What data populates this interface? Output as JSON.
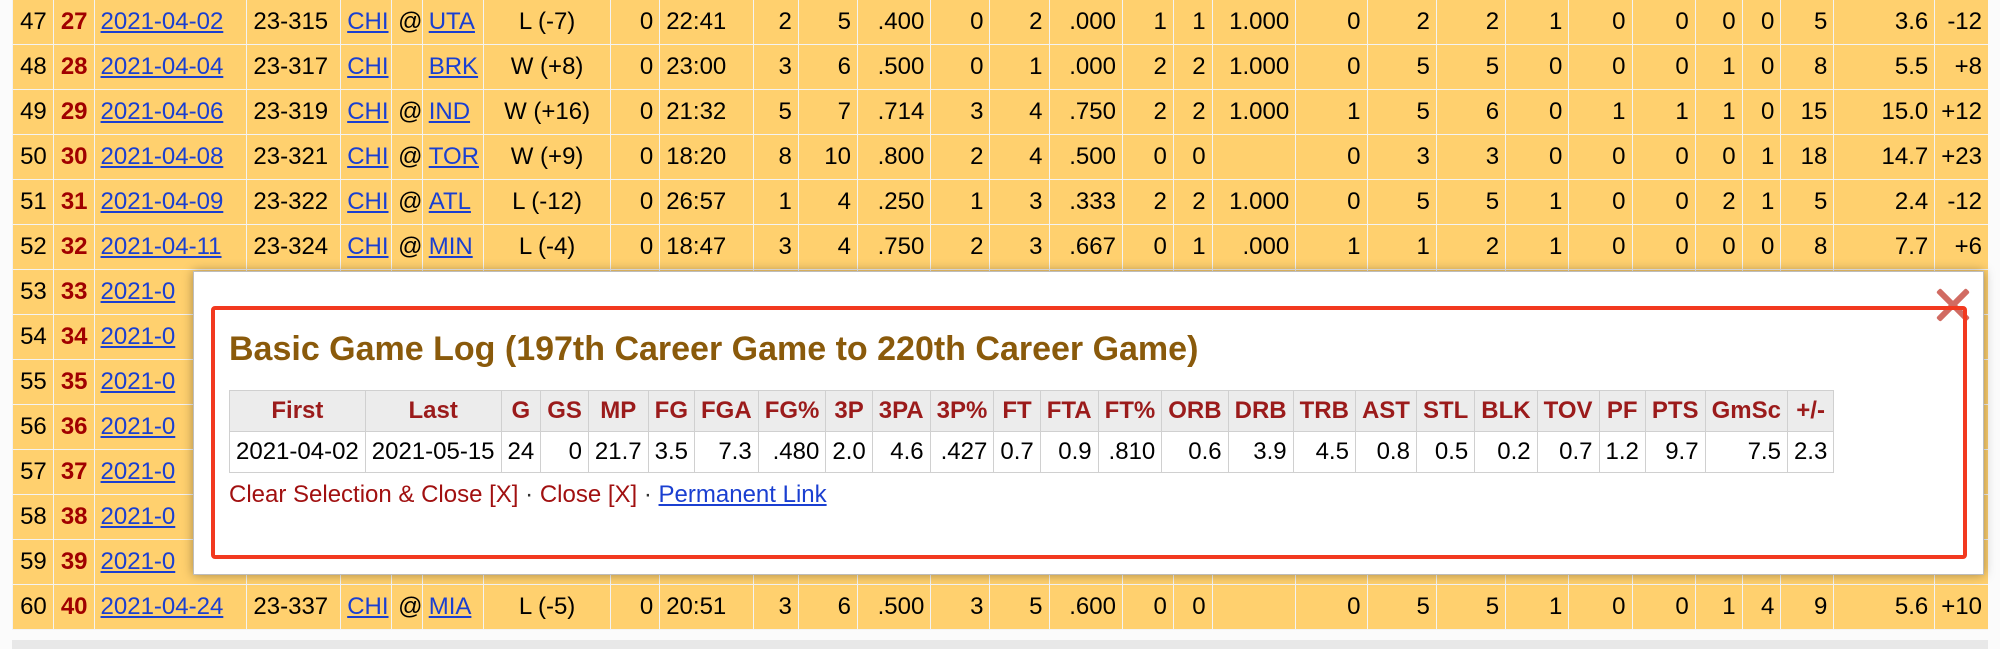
{
  "game_rows": [
    {
      "rk": "47",
      "g": "27",
      "date": "2021-04-02",
      "age": "23-315",
      "tm": "CHI",
      "loc": "@",
      "opp": "UTA",
      "result": "L (-7)",
      "gs": "0",
      "mp": "22:41",
      "fg": "2",
      "fga": "5",
      "fg_pct": ".400",
      "tp": "0",
      "tpa": "2",
      "tp_pct": ".000",
      "ft": "1",
      "fta": "1",
      "ft_pct": "1.000",
      "orb": "0",
      "drb": "2",
      "trb": "2",
      "ast": "1",
      "stl": "0",
      "blk": "0",
      "tov": "0",
      "pf": "0",
      "pts": "5",
      "gmsc": "3.6",
      "pm": "-12"
    },
    {
      "rk": "48",
      "g": "28",
      "date": "2021-04-04",
      "age": "23-317",
      "tm": "CHI",
      "loc": "",
      "opp": "BRK",
      "result": "W (+8)",
      "gs": "0",
      "mp": "23:00",
      "fg": "3",
      "fga": "6",
      "fg_pct": ".500",
      "tp": "0",
      "tpa": "1",
      "tp_pct": ".000",
      "ft": "2",
      "fta": "2",
      "ft_pct": "1.000",
      "orb": "0",
      "drb": "5",
      "trb": "5",
      "ast": "0",
      "stl": "0",
      "blk": "0",
      "tov": "1",
      "pf": "0",
      "pts": "8",
      "gmsc": "5.5",
      "pm": "+8"
    },
    {
      "rk": "49",
      "g": "29",
      "date": "2021-04-06",
      "age": "23-319",
      "tm": "CHI",
      "loc": "@",
      "opp": "IND",
      "result": "W (+16)",
      "gs": "0",
      "mp": "21:32",
      "fg": "5",
      "fga": "7",
      "fg_pct": ".714",
      "tp": "3",
      "tpa": "4",
      "tp_pct": ".750",
      "ft": "2",
      "fta": "2",
      "ft_pct": "1.000",
      "orb": "1",
      "drb": "5",
      "trb": "6",
      "ast": "0",
      "stl": "1",
      "blk": "1",
      "tov": "1",
      "pf": "0",
      "pts": "15",
      "gmsc": "15.0",
      "pm": "+12"
    },
    {
      "rk": "50",
      "g": "30",
      "date": "2021-04-08",
      "age": "23-321",
      "tm": "CHI",
      "loc": "@",
      "opp": "TOR",
      "result": "W (+9)",
      "gs": "0",
      "mp": "18:20",
      "fg": "8",
      "fga": "10",
      "fg_pct": ".800",
      "tp": "2",
      "tpa": "4",
      "tp_pct": ".500",
      "ft": "0",
      "fta": "0",
      "ft_pct": "",
      "orb": "0",
      "drb": "3",
      "trb": "3",
      "ast": "0",
      "stl": "0",
      "blk": "0",
      "tov": "0",
      "pf": "1",
      "pts": "18",
      "gmsc": "14.7",
      "pm": "+23"
    },
    {
      "rk": "51",
      "g": "31",
      "date": "2021-04-09",
      "age": "23-322",
      "tm": "CHI",
      "loc": "@",
      "opp": "ATL",
      "result": "L (-12)",
      "gs": "0",
      "mp": "26:57",
      "fg": "1",
      "fga": "4",
      "fg_pct": ".250",
      "tp": "1",
      "tpa": "3",
      "tp_pct": ".333",
      "ft": "2",
      "fta": "2",
      "ft_pct": "1.000",
      "orb": "0",
      "drb": "5",
      "trb": "5",
      "ast": "1",
      "stl": "0",
      "blk": "0",
      "tov": "2",
      "pf": "1",
      "pts": "5",
      "gmsc": "2.4",
      "pm": "-12"
    },
    {
      "rk": "52",
      "g": "32",
      "date": "2021-04-11",
      "age": "23-324",
      "tm": "CHI",
      "loc": "@",
      "opp": "MIN",
      "result": "L (-4)",
      "gs": "0",
      "mp": "18:47",
      "fg": "3",
      "fga": "4",
      "fg_pct": ".750",
      "tp": "2",
      "tpa": "3",
      "tp_pct": ".667",
      "ft": "0",
      "fta": "1",
      "ft_pct": ".000",
      "orb": "1",
      "drb": "1",
      "trb": "2",
      "ast": "1",
      "stl": "0",
      "blk": "0",
      "tov": "0",
      "pf": "0",
      "pts": "8",
      "gmsc": "7.7",
      "pm": "+6"
    },
    {
      "rk": "53",
      "g": "33",
      "date": "2021-0",
      "age": "",
      "tm": "",
      "loc": "",
      "opp": "",
      "result": "",
      "gs": "",
      "mp": "",
      "fg": "",
      "fga": "",
      "fg_pct": "",
      "tp": "",
      "tpa": "",
      "tp_pct": "",
      "ft": "",
      "fta": "",
      "ft_pct": "",
      "orb": "",
      "drb": "",
      "trb": "",
      "ast": "",
      "stl": "",
      "blk": "",
      "tov": "",
      "pf": "",
      "pts": "",
      "gmsc": "",
      "pm": ""
    },
    {
      "rk": "54",
      "g": "34",
      "date": "2021-0",
      "age": "",
      "tm": "",
      "loc": "",
      "opp": "",
      "result": "",
      "gs": "",
      "mp": "",
      "fg": "",
      "fga": "",
      "fg_pct": "",
      "tp": "",
      "tpa": "",
      "tp_pct": "",
      "ft": "",
      "fta": "",
      "ft_pct": "",
      "orb": "",
      "drb": "",
      "trb": "",
      "ast": "",
      "stl": "",
      "blk": "",
      "tov": "",
      "pf": "",
      "pts": "",
      "gmsc": "",
      "pm": ""
    },
    {
      "rk": "55",
      "g": "35",
      "date": "2021-0",
      "age": "",
      "tm": "",
      "loc": "",
      "opp": "",
      "result": "",
      "gs": "",
      "mp": "",
      "fg": "",
      "fga": "",
      "fg_pct": "",
      "tp": "",
      "tpa": "",
      "tp_pct": "",
      "ft": "",
      "fta": "",
      "ft_pct": "",
      "orb": "",
      "drb": "",
      "trb": "",
      "ast": "",
      "stl": "",
      "blk": "",
      "tov": "",
      "pf": "",
      "pts": "",
      "gmsc": "",
      "pm": ""
    },
    {
      "rk": "56",
      "g": "36",
      "date": "2021-0",
      "age": "",
      "tm": "",
      "loc": "",
      "opp": "",
      "result": "",
      "gs": "",
      "mp": "",
      "fg": "",
      "fga": "",
      "fg_pct": "",
      "tp": "",
      "tpa": "",
      "tp_pct": "",
      "ft": "",
      "fta": "",
      "ft_pct": "",
      "orb": "",
      "drb": "",
      "trb": "",
      "ast": "",
      "stl": "",
      "blk": "",
      "tov": "",
      "pf": "",
      "pts": "",
      "gmsc": "",
      "pm": ""
    },
    {
      "rk": "57",
      "g": "37",
      "date": "2021-0",
      "age": "",
      "tm": "",
      "loc": "",
      "opp": "",
      "result": "",
      "gs": "",
      "mp": "",
      "fg": "",
      "fga": "",
      "fg_pct": "",
      "tp": "",
      "tpa": "",
      "tp_pct": "",
      "ft": "",
      "fta": "",
      "ft_pct": "",
      "orb": "",
      "drb": "",
      "trb": "",
      "ast": "",
      "stl": "",
      "blk": "",
      "tov": "",
      "pf": "",
      "pts": "",
      "gmsc": "",
      "pm": ""
    },
    {
      "rk": "58",
      "g": "38",
      "date": "2021-0",
      "age": "",
      "tm": "",
      "loc": "",
      "opp": "",
      "result": "",
      "gs": "",
      "mp": "",
      "fg": "",
      "fga": "",
      "fg_pct": "",
      "tp": "",
      "tpa": "",
      "tp_pct": "",
      "ft": "",
      "fta": "",
      "ft_pct": "",
      "orb": "",
      "drb": "",
      "trb": "",
      "ast": "",
      "stl": "",
      "blk": "",
      "tov": "",
      "pf": "",
      "pts": "",
      "gmsc": "",
      "pm": ""
    },
    {
      "rk": "59",
      "g": "39",
      "date": "2021-0",
      "age": "",
      "tm": "",
      "loc": "",
      "opp": "",
      "result": "",
      "gs": "",
      "mp": "",
      "fg": "",
      "fga": "",
      "fg_pct": "",
      "tp": "",
      "tpa": "",
      "tp_pct": "",
      "ft": "",
      "fta": "",
      "ft_pct": "",
      "orb": "",
      "drb": "",
      "trb": "",
      "ast": "",
      "stl": "",
      "blk": "",
      "tov": "",
      "pf": "",
      "pts": "",
      "gmsc": "",
      "pm": ""
    },
    {
      "rk": "60",
      "g": "40",
      "date": "2021-04-24",
      "age": "23-337",
      "tm": "CHI",
      "loc": "@",
      "opp": "MIA",
      "result": "L (-5)",
      "gs": "0",
      "mp": "20:51",
      "fg": "3",
      "fga": "6",
      "fg_pct": ".500",
      "tp": "3",
      "tpa": "5",
      "tp_pct": ".600",
      "ft": "0",
      "fta": "0",
      "ft_pct": "",
      "orb": "0",
      "drb": "5",
      "trb": "5",
      "ast": "1",
      "stl": "0",
      "blk": "0",
      "tov": "1",
      "pf": "4",
      "pts": "9",
      "gmsc": "5.6",
      "pm": "+10"
    }
  ],
  "modal": {
    "close_icon": "close-x-icon",
    "title": "Basic Game Log (197th Career Game to 220th Career Game)",
    "columns": [
      "First",
      "Last",
      "G",
      "GS",
      "MP",
      "FG",
      "FGA",
      "FG%",
      "3P",
      "3PA",
      "3P%",
      "FT",
      "FTA",
      "FT%",
      "ORB",
      "DRB",
      "TRB",
      "AST",
      "STL",
      "BLK",
      "TOV",
      "PF",
      "PTS",
      "GmSc",
      "+/-"
    ],
    "values": [
      "2021-04-02",
      "2021-05-15",
      "24",
      "0",
      "21.7",
      "3.5",
      "7.3",
      ".480",
      "2.0",
      "4.6",
      ".427",
      "0.7",
      "0.9",
      ".810",
      "0.6",
      "3.9",
      "4.5",
      "0.8",
      "0.5",
      "0.2",
      "0.7",
      "1.2",
      "9.7",
      "7.5",
      "2.3"
    ],
    "clear_label": "Clear Selection & Close [X]",
    "separator": "·",
    "close_label": "Close [X]",
    "permanent_label": "Permanent Link"
  },
  "colors": {
    "row_background": "#ffd06e",
    "rank_red": "#a00000",
    "link_blue": "#1a3fd1",
    "title_brown": "#8a5a0b",
    "highlight_border": "#f2391f",
    "close_icon": "#d16b62"
  }
}
